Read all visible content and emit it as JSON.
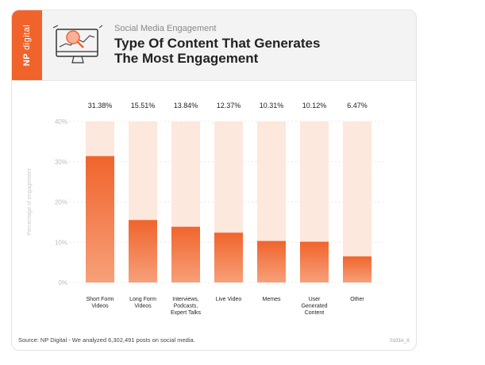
{
  "header": {
    "brand_bold": "NP",
    "brand_rest": "digital",
    "subtitle": "Social Media Engagement",
    "title": "Type Of Content That Generates\nThe Most Engagement"
  },
  "icons": {
    "header_icon": "monitor-chart-icon"
  },
  "colors": {
    "accent": "#f0642c",
    "bar_bg": "#fde8de",
    "bar_top": "#f0642c",
    "bar_bottom": "#f7a07a"
  },
  "chart_data": {
    "type": "bar",
    "title": "Type Of Content That Generates The Most Engagement",
    "ylabel": "Percentage of engagement",
    "ylim": [
      0,
      40
    ],
    "yticks": [
      "0%",
      "10%",
      "20%",
      "30%",
      "40%"
    ],
    "grid": true,
    "categories": [
      [
        "Short Form",
        "Videos"
      ],
      [
        "Long Form",
        "Videos"
      ],
      [
        "Interviews,",
        "Podcasts,",
        "Expert Talks"
      ],
      [
        "Live Video"
      ],
      [
        "Memes"
      ],
      [
        "User",
        "Generated",
        "Content"
      ],
      [
        "Other"
      ]
    ],
    "values": [
      31.38,
      15.51,
      13.84,
      12.37,
      10.31,
      10.12,
      6.47
    ],
    "value_labels": [
      "31.38%",
      "15.51%",
      "13.84%",
      "12.37%",
      "10.31%",
      "10.12%",
      "6.47%"
    ]
  },
  "footer": {
    "source": "Source: NP Digital - We analyzed 6,302,491 posts on social media.",
    "code": "0103A_X"
  }
}
